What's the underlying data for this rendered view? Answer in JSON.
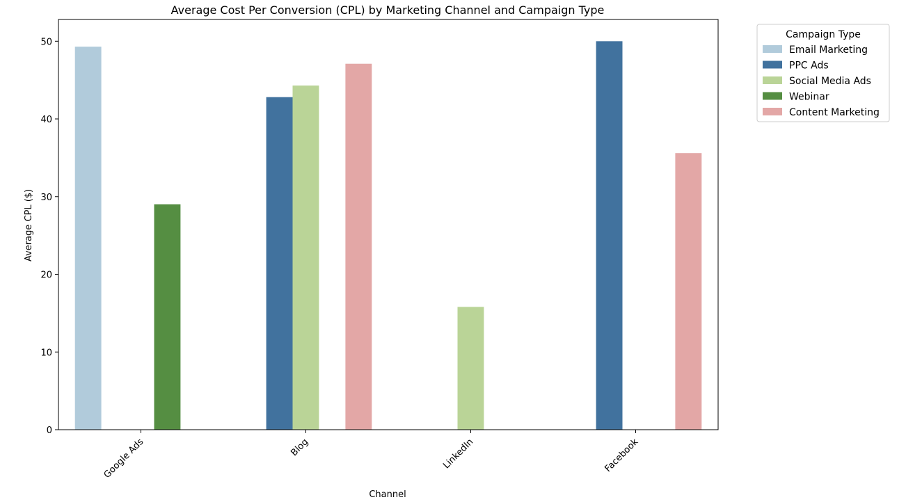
{
  "chart_data": {
    "type": "bar",
    "title": "Average Cost Per Conversion (CPL) by Marketing Channel and Campaign Type",
    "xlabel": "Channel",
    "ylabel": "Average CPL ($)",
    "categories": [
      "Google Ads",
      "Blog",
      "LinkedIn",
      "Facebook"
    ],
    "ylim": [
      0,
      52.8
    ],
    "yticks": [
      0,
      10,
      20,
      30,
      40,
      50
    ],
    "grid": false,
    "legend": {
      "title": "Campaign Type",
      "position": "outside-top-right"
    },
    "series": [
      {
        "name": "Email Marketing",
        "color": "#b1cbdb",
        "values": [
          49.3,
          null,
          null,
          null
        ]
      },
      {
        "name": "PPC Ads",
        "color": "#41729e",
        "values": [
          null,
          42.8,
          null,
          50.0
        ]
      },
      {
        "name": "Social Media Ads",
        "color": "#bad497",
        "values": [
          null,
          44.3,
          15.8,
          null
        ]
      },
      {
        "name": "Webinar",
        "color": "#558e42",
        "values": [
          29.0,
          null,
          null,
          null
        ]
      },
      {
        "name": "Content Marketing",
        "color": "#e3a7a6",
        "values": [
          null,
          47.1,
          null,
          35.6
        ]
      }
    ]
  }
}
